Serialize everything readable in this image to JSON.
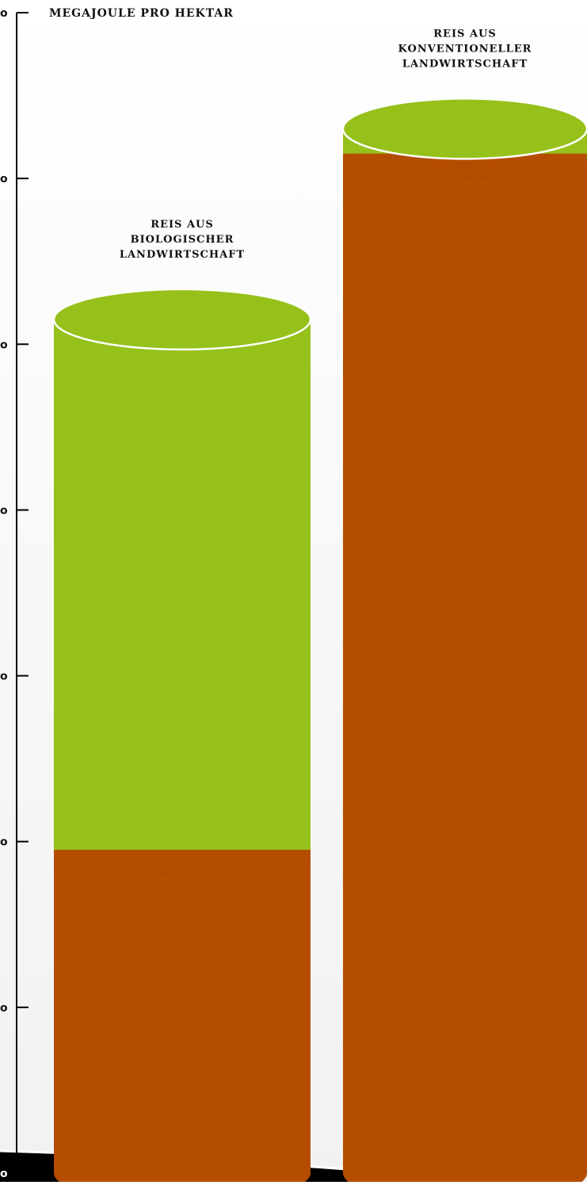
{
  "chart_data": {
    "type": "bar",
    "stacked": true,
    "ylabel": "MEGAJOULE PRO HEKTAR",
    "ytick_labels": [
      "o",
      "o",
      "o",
      "o",
      "o",
      "o",
      "o",
      "o"
    ],
    "ylim": [
      0,
      7
    ],
    "grid": false,
    "categories": [
      [
        "REIS AUS",
        "BIOLOGISCHER",
        "LANDWIRTSCHAFT"
      ],
      [
        "REIS AUS",
        "KONVENTIONELLER",
        "LANDWIRTSCHAFT"
      ]
    ],
    "series": [
      {
        "color": "#B44D00",
        "values": [
          1.95,
          6.15
        ]
      },
      {
        "color": "#96C11B",
        "values": [
          3.2,
          0.15
        ]
      }
    ]
  }
}
